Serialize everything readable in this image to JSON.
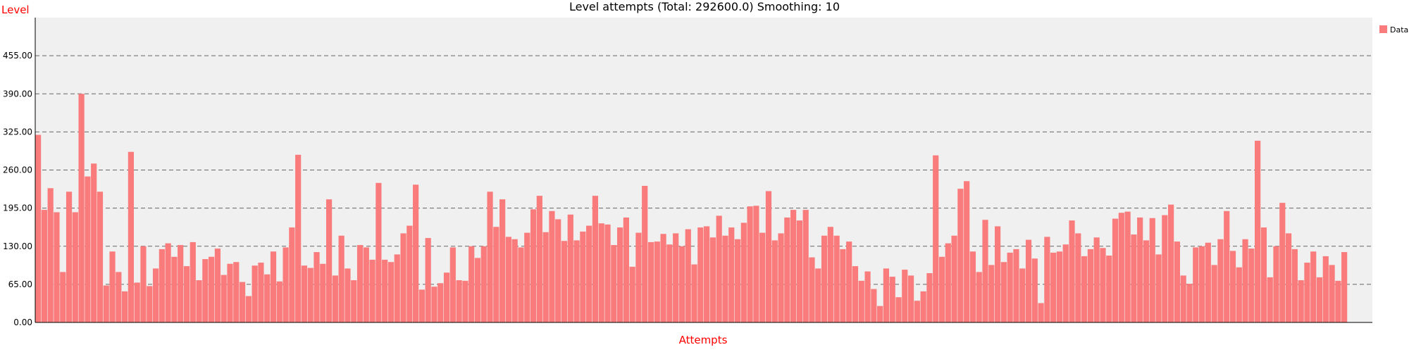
{
  "chart_data": {
    "type": "bar",
    "title": "Level attempts (Total: 292600.0) Smoothing: 10",
    "xlabel": "Attempts",
    "ylabel": "Level",
    "y_ticks": [
      "0.00",
      "65.00",
      "130.00",
      "195.00",
      "260.00",
      "325.00",
      "390.00",
      "455.00"
    ],
    "ylim": [
      0,
      520
    ],
    "grid": true,
    "legend_placement": "top-right",
    "colors": {
      "bar": "#fa7b7b",
      "plot_bg": "#f0f0f0",
      "grid": "#666666",
      "axis_label": "#ff0000"
    },
    "series": [
      {
        "name": "Data",
        "values": [
          320,
          192,
          229,
          188,
          86,
          223,
          188,
          390,
          249,
          271,
          223,
          63,
          121,
          86,
          53,
          291,
          68,
          130,
          62,
          92,
          125,
          135,
          112,
          132,
          96,
          137,
          72,
          108,
          112,
          126,
          81,
          100,
          103,
          69,
          45,
          97,
          102,
          82,
          121,
          70,
          128,
          162,
          286,
          97,
          93,
          120,
          100,
          210,
          80,
          148,
          92,
          72,
          132,
          128,
          107,
          238,
          107,
          103,
          116,
          152,
          165,
          235,
          56,
          144,
          61,
          67,
          85,
          128,
          72,
          71,
          130,
          110,
          130,
          223,
          163,
          210,
          146,
          142,
          128,
          153,
          193,
          216,
          154,
          190,
          176,
          139,
          184,
          140,
          155,
          165,
          216,
          169,
          167,
          132,
          162,
          179,
          95,
          153,
          233,
          137,
          138,
          151,
          133,
          152,
          130,
          159,
          99,
          162,
          164,
          145,
          182,
          148,
          162,
          142,
          170,
          198,
          199,
          153,
          224,
          140,
          152,
          179,
          192,
          174,
          192,
          111,
          92,
          148,
          163,
          148,
          125,
          138,
          96,
          71,
          87,
          57,
          28,
          92,
          78,
          43,
          90,
          80,
          37,
          53,
          84,
          285,
          112,
          135,
          148,
          228,
          241,
          121,
          86,
          175,
          98,
          164,
          103,
          119,
          125,
          92,
          141,
          109,
          33,
          146,
          119,
          121,
          133,
          174,
          152,
          113,
          125,
          145,
          127,
          114,
          177,
          187,
          189,
          150,
          179,
          140,
          178,
          116,
          183,
          201,
          138,
          80,
          66,
          128,
          130,
          136,
          98,
          142,
          190,
          122,
          94,
          142,
          126,
          310,
          162,
          77,
          130,
          204,
          152,
          125,
          72,
          102,
          121,
          77,
          113,
          98,
          71,
          120,
          0,
          0,
          0,
          0
        ]
      }
    ]
  }
}
